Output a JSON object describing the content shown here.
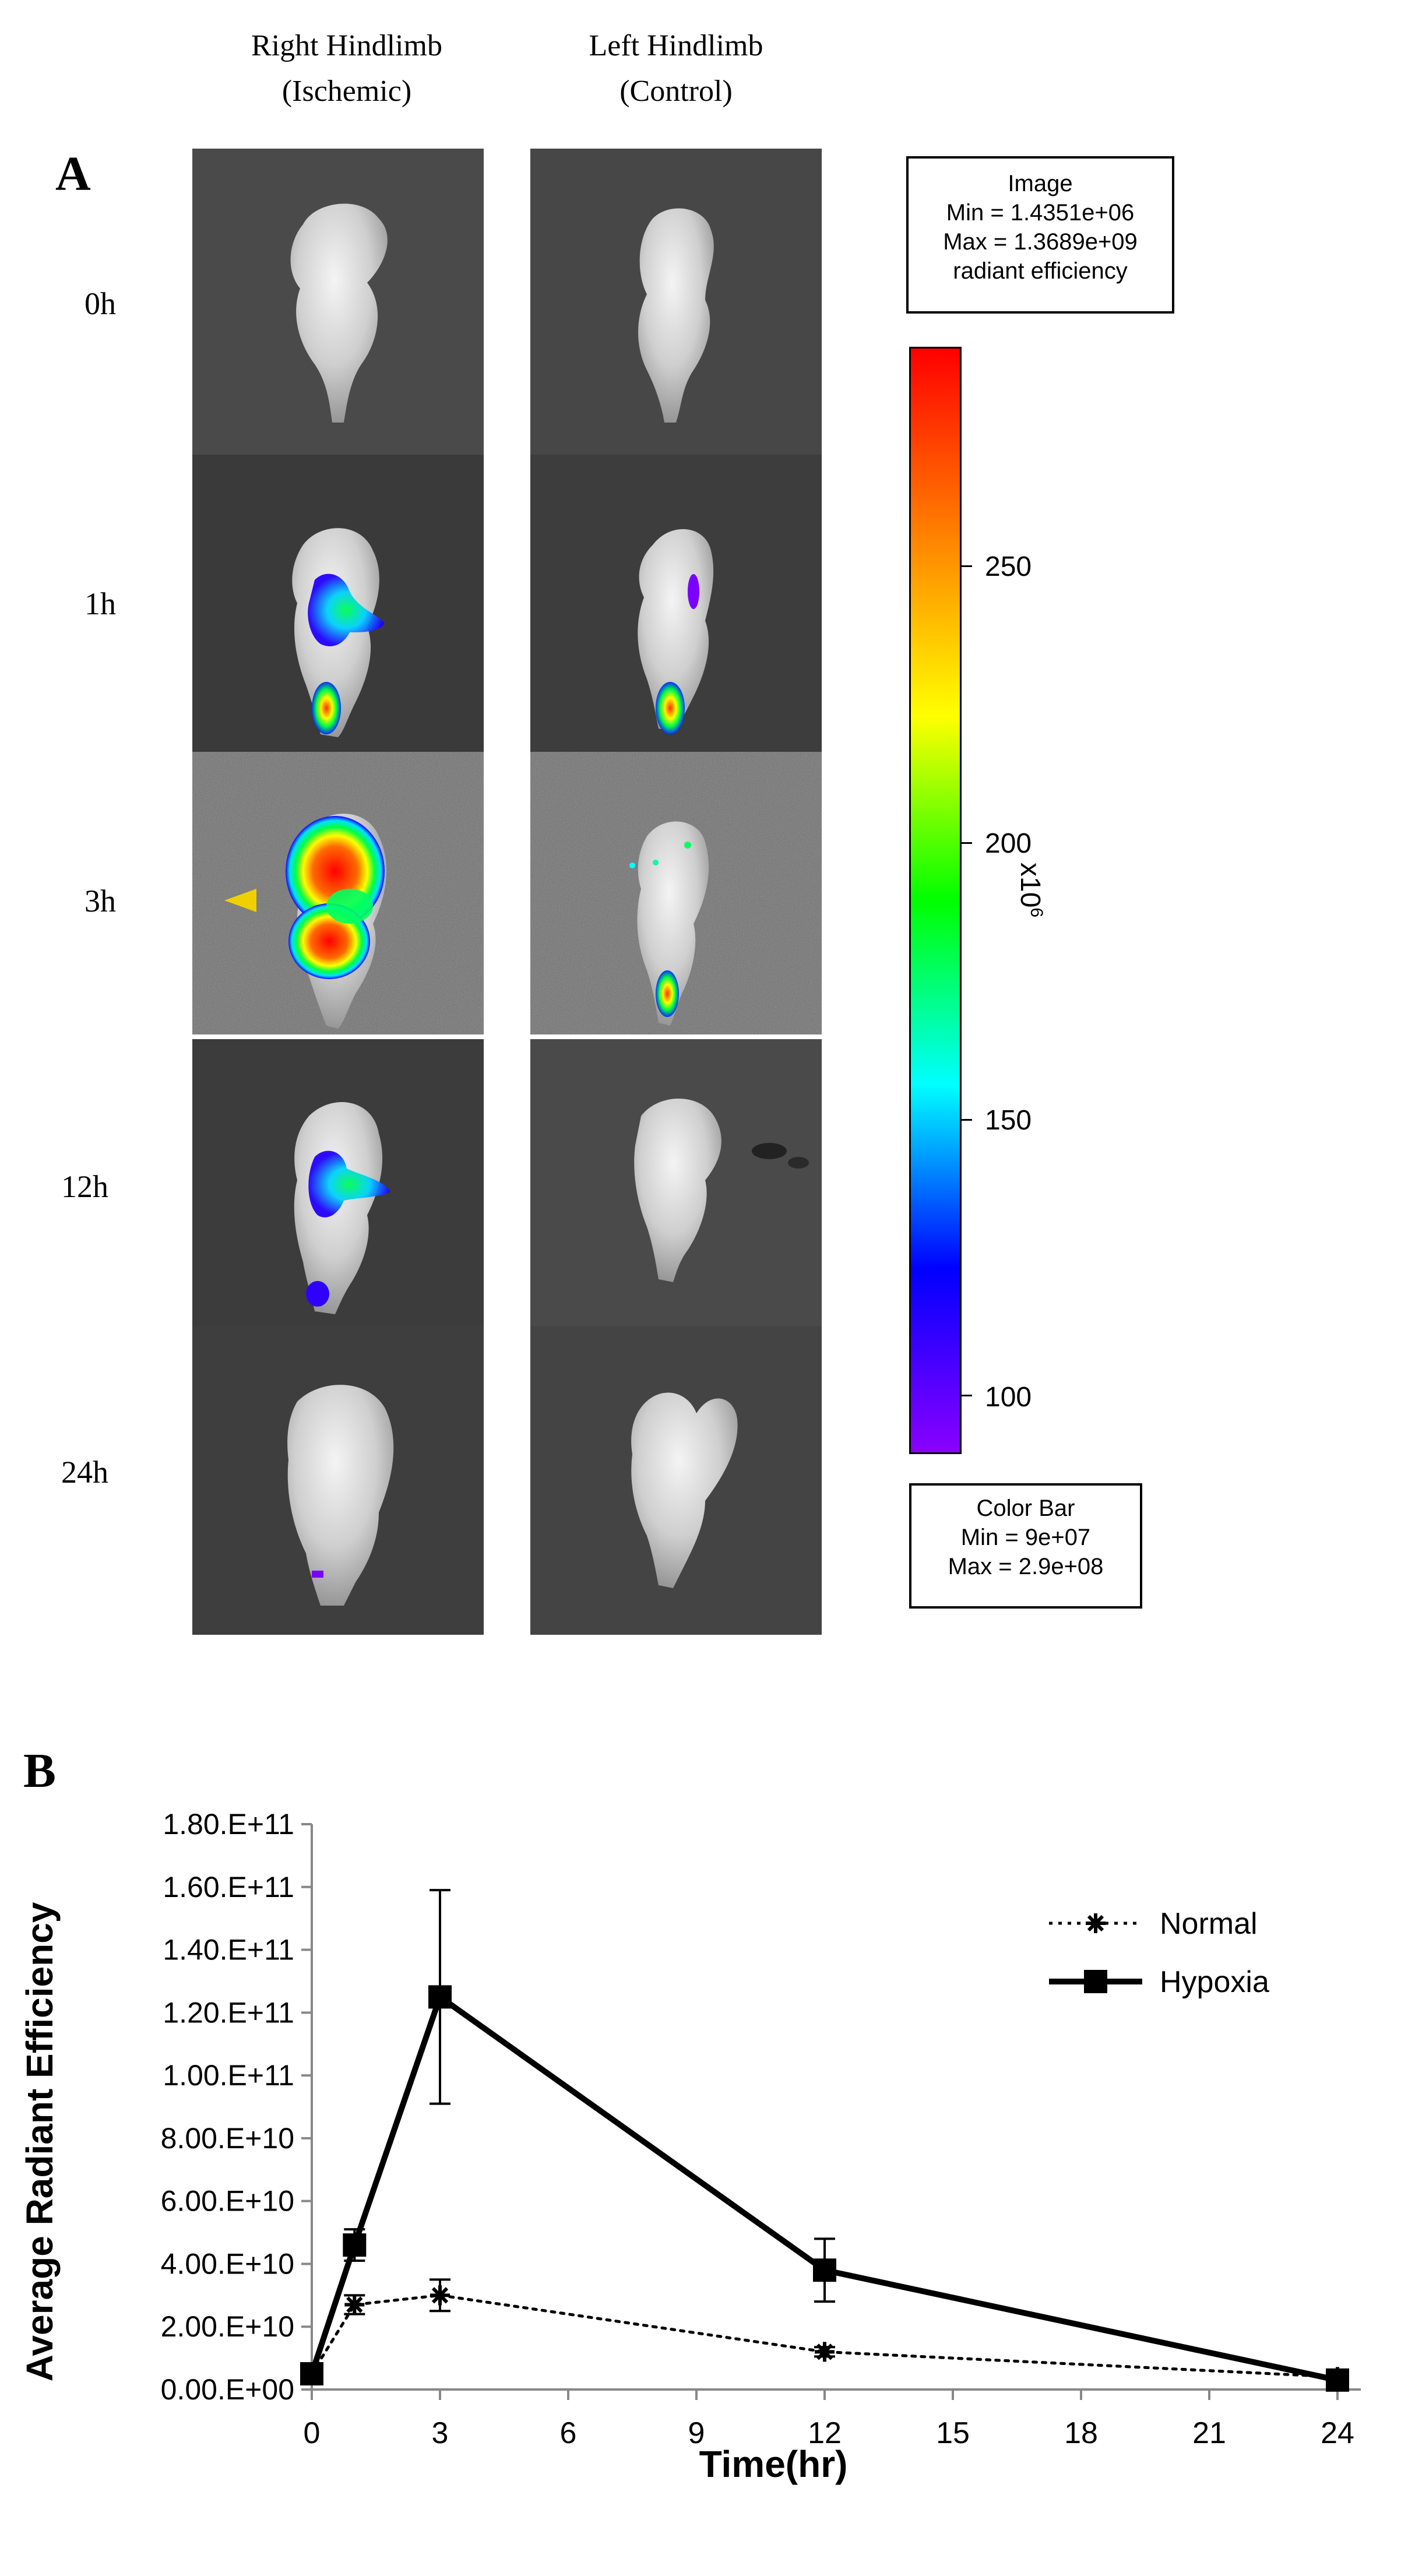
{
  "panel_a": {
    "letter": "A",
    "columns": [
      {
        "title_line1": "Right Hindlimb",
        "title_line2": "(Ischemic)"
      },
      {
        "title_line1": "Left Hindlimb",
        "title_line2": "(Control)"
      }
    ],
    "time_labels": [
      "0h",
      "1h",
      "3h",
      "12h",
      "24h"
    ],
    "image_box": {
      "line1": "Image",
      "line2": "Min = 1.4351e+06",
      "line3": "Max = 1.3689e+09",
      "line4": "radiant efficiency"
    },
    "colorbar_box": {
      "line1": "Color Bar",
      "line2": "Min = 9e+07",
      "line3": "Max = 2.9e+08"
    },
    "colorbar_ticks": [
      "250",
      "200",
      "150",
      "100"
    ],
    "colorbar_unit": "x10",
    "colorbar_unit_exp": "6",
    "colorbar_colors": [
      "#ff0000",
      "#ff7f00",
      "#ffff00",
      "#00ff00",
      "#00ffff",
      "#0000ff",
      "#8a00ff"
    ]
  },
  "chart_data": {
    "type": "line",
    "letter": "B",
    "xlabel": "Time(hr)",
    "ylabel": "Average Radiant Efficiency",
    "x_ticks": [
      "0",
      "3",
      "6",
      "9",
      "12",
      "15",
      "18",
      "21",
      "24"
    ],
    "y_ticks": [
      "0.00.E+00",
      "2.00.E+10",
      "4.00.E+10",
      "6.00.E+10",
      "8.00.E+10",
      "1.00.E+11",
      "1.20.E+11",
      "1.40.E+11",
      "1.60.E+11",
      "1.80.E+11"
    ],
    "xlim": [
      0,
      24
    ],
    "ylim": [
      0,
      180000000000
    ],
    "legend_position": "top-right",
    "series": [
      {
        "name": "Normal",
        "style": "dotted",
        "marker": "asterisk",
        "x": [
          0,
          1,
          3,
          12,
          24
        ],
        "y": [
          5000000000,
          27000000000,
          30000000000,
          12000000000,
          4000000000
        ],
        "err": [
          1000000000,
          3000000000,
          5000000000,
          1500000000,
          1000000000
        ]
      },
      {
        "name": "Hypoxia",
        "style": "solid",
        "marker": "square",
        "x": [
          0,
          1,
          3,
          12,
          24
        ],
        "y": [
          5000000000,
          46000000000,
          125000000000,
          38000000000,
          3000000000
        ],
        "err": [
          2000000000,
          5000000000,
          34000000000,
          10000000000,
          1000000000
        ]
      }
    ]
  }
}
